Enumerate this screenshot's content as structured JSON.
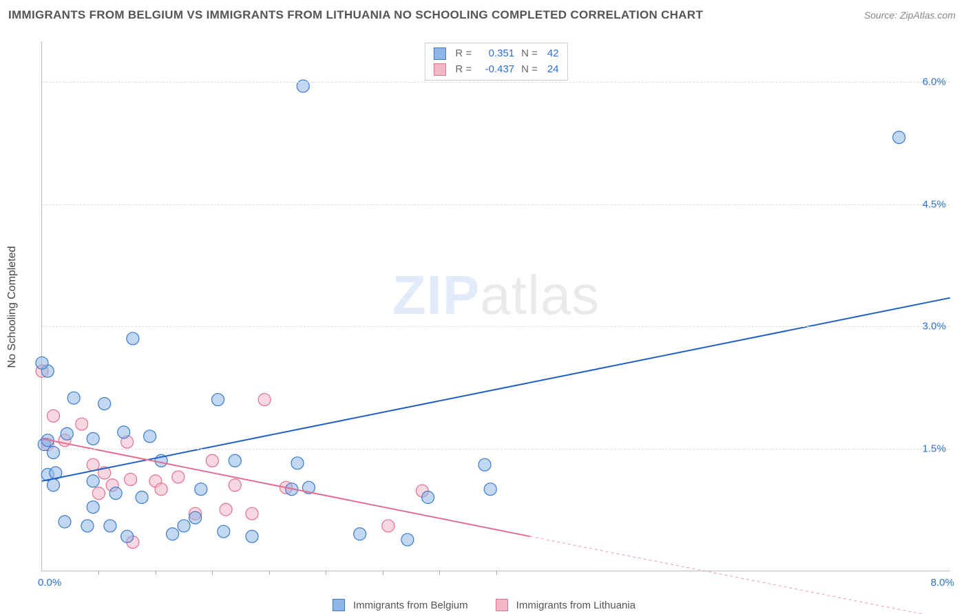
{
  "title": "IMMIGRANTS FROM BELGIUM VS IMMIGRANTS FROM LITHUANIA NO SCHOOLING COMPLETED CORRELATION CHART",
  "source_label": "Source:",
  "source_value": "ZipAtlas.com",
  "watermark_a": "ZIP",
  "watermark_b": "atlas",
  "yaxis_title": "No Schooling Completed",
  "chart": {
    "type": "scatter",
    "xlim": [
      0.0,
      8.0
    ],
    "ylim": [
      0.0,
      6.5
    ],
    "x_tick_labels": [
      "0.0%",
      "8.0%"
    ],
    "y_ticks": [
      1.5,
      3.0,
      4.5,
      6.0
    ],
    "y_tick_labels": [
      "1.5%",
      "3.0%",
      "4.5%",
      "6.0%"
    ],
    "x_minor_ticks": [
      0.5,
      1.0,
      1.5,
      2.0,
      2.5,
      3.0,
      3.5,
      4.0
    ],
    "background_color": "#ffffff",
    "grid_color": "#dddddd",
    "axis_color": "#bbbbbb",
    "tick_label_color": "#2a6fd6",
    "marker_radius": 9,
    "marker_opacity": 0.55,
    "series": [
      {
        "name": "Immigrants from Belgium",
        "color_fill": "#8eb7e8",
        "color_stroke": "#3b79c9",
        "R_label": "R =",
        "R": "0.351",
        "N_label": "N =",
        "N": "42",
        "trend": {
          "x1": 0.0,
          "y1": 1.1,
          "x2": 8.0,
          "y2": 3.35,
          "color": "#1f5fbf",
          "width": 2,
          "dash": "none"
        },
        "points": [
          [
            0.02,
            1.55
          ],
          [
            0.05,
            1.18
          ],
          [
            0.05,
            1.6
          ],
          [
            0.05,
            2.45
          ],
          [
            0.1,
            1.05
          ],
          [
            0.1,
            1.45
          ],
          [
            0.12,
            1.2
          ],
          [
            0.2,
            0.6
          ],
          [
            0.22,
            1.68
          ],
          [
            0.28,
            2.12
          ],
          [
            0.4,
            0.55
          ],
          [
            0.45,
            0.78
          ],
          [
            0.45,
            1.1
          ],
          [
            0.45,
            1.62
          ],
          [
            0.55,
            2.05
          ],
          [
            0.6,
            0.55
          ],
          [
            0.65,
            0.95
          ],
          [
            0.72,
            1.7
          ],
          [
            0.75,
            0.42
          ],
          [
            0.8,
            2.85
          ],
          [
            0.88,
            0.9
          ],
          [
            0.95,
            1.65
          ],
          [
            1.05,
            1.35
          ],
          [
            1.15,
            0.45
          ],
          [
            1.25,
            0.55
          ],
          [
            1.35,
            0.65
          ],
          [
            1.4,
            1.0
          ],
          [
            1.55,
            2.1
          ],
          [
            1.6,
            0.48
          ],
          [
            1.7,
            1.35
          ],
          [
            1.85,
            0.42
          ],
          [
            2.2,
            1.0
          ],
          [
            2.25,
            1.32
          ],
          [
            2.3,
            5.95
          ],
          [
            2.35,
            1.02
          ],
          [
            2.8,
            0.45
          ],
          [
            3.22,
            0.38
          ],
          [
            3.4,
            0.9
          ],
          [
            3.9,
            1.3
          ],
          [
            3.95,
            1.0
          ],
          [
            7.55,
            5.32
          ],
          [
            0.0,
            2.55
          ]
        ]
      },
      {
        "name": "Immigrants from Lithuania",
        "color_fill": "#f3b8c6",
        "color_stroke": "#e46e8f",
        "R_label": "R =",
        "R": "-0.437",
        "N_label": "N =",
        "N": "24",
        "trend": {
          "x1": 0.0,
          "y1": 1.62,
          "x2": 4.3,
          "y2": 0.42,
          "color": "#e46e8f",
          "width": 2,
          "dash": "none",
          "extend_x2": 8.0,
          "extend_y2": -0.6,
          "extend_dash": "4,4"
        },
        "points": [
          [
            0.0,
            2.45
          ],
          [
            0.05,
            1.55
          ],
          [
            0.1,
            1.9
          ],
          [
            0.2,
            1.6
          ],
          [
            0.35,
            1.8
          ],
          [
            0.45,
            1.3
          ],
          [
            0.5,
            0.95
          ],
          [
            0.55,
            1.2
          ],
          [
            0.62,
            1.05
          ],
          [
            0.75,
            1.58
          ],
          [
            0.78,
            1.12
          ],
          [
            0.8,
            0.35
          ],
          [
            1.0,
            1.1
          ],
          [
            1.05,
            1.0
          ],
          [
            1.2,
            1.15
          ],
          [
            1.35,
            0.7
          ],
          [
            1.5,
            1.35
          ],
          [
            1.62,
            0.75
          ],
          [
            1.7,
            1.05
          ],
          [
            1.85,
            0.7
          ],
          [
            1.96,
            2.1
          ],
          [
            2.15,
            1.02
          ],
          [
            3.05,
            0.55
          ],
          [
            3.35,
            0.98
          ]
        ]
      }
    ]
  }
}
